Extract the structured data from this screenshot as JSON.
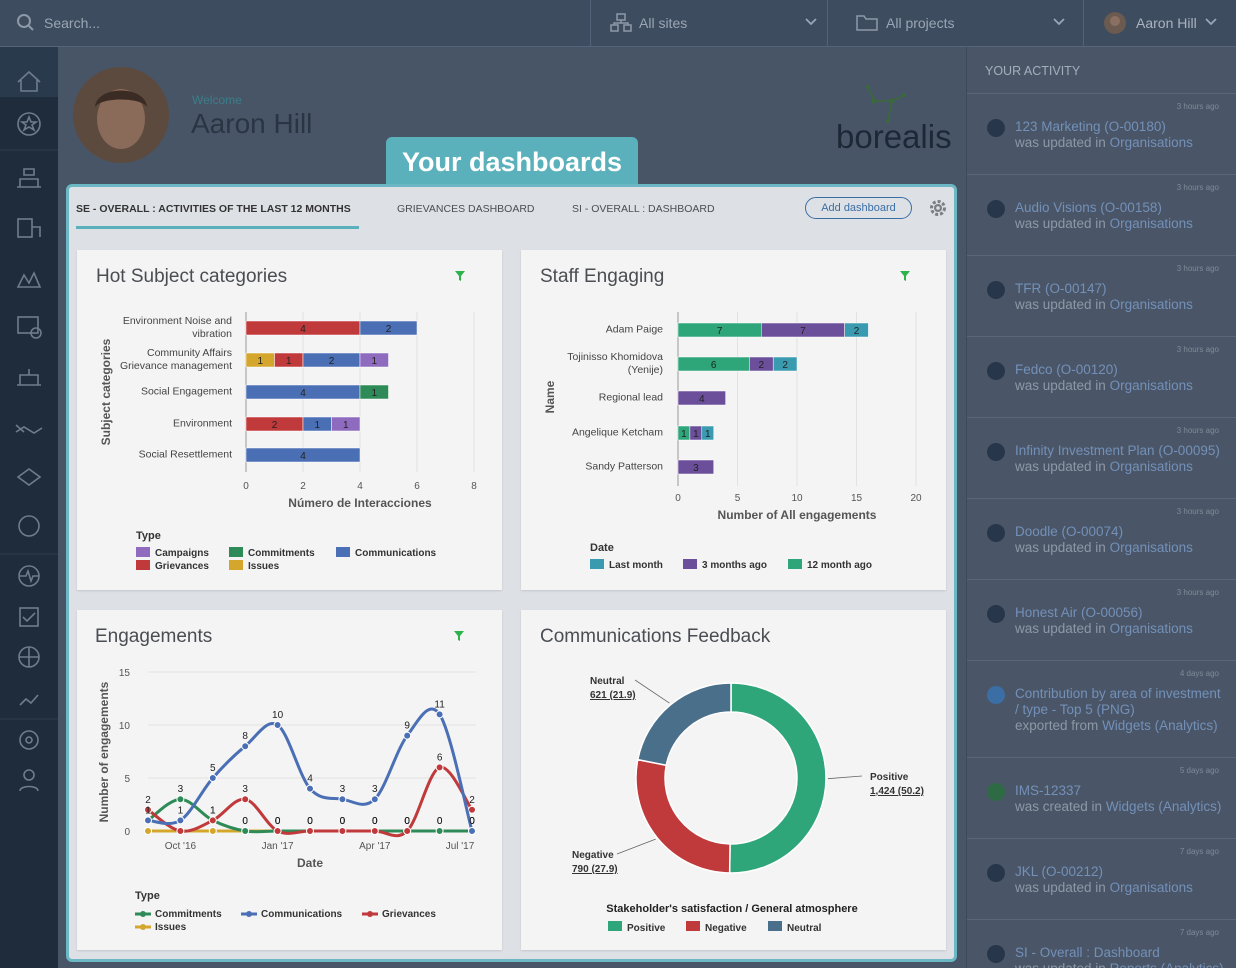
{
  "header": {
    "search": "Search...",
    "sites": "All sites",
    "projects": "All projects",
    "user": "Aaron Hill"
  },
  "welcome": {
    "greeting": "Welcome",
    "name": "Aaron Hill"
  },
  "logo": "borealis",
  "banner": "Your dashboards",
  "tabs": {
    "items": [
      "SE - OVERALL : ACTIVITIES OF THE LAST 12 MONTHS",
      "GRIEVANCES DASHBOARD",
      "SI - OVERALL : DASHBOARD"
    ],
    "add_button": "Add dashboard"
  },
  "activity": {
    "title": "YOUR ACTIVITY",
    "items": [
      {
        "time": "3 hours ago",
        "title": "123 Marketing (O-00180)",
        "action": "was updated in",
        "target": "Organisations"
      },
      {
        "time": "3 hours ago",
        "title": "Audio Visions (O-00158)",
        "action": "was updated in",
        "target": "Organisations"
      },
      {
        "time": "3 hours ago",
        "title": "TFR (O-00147)",
        "action": "was updated in",
        "target": "Organisations"
      },
      {
        "time": "3 hours ago",
        "title": "Fedco (O-00120)",
        "action": "was updated in",
        "target": "Organisations"
      },
      {
        "time": "3 hours ago",
        "title": "Infinity Investment Plan (O-00095)",
        "action": "was updated in",
        "target": "Organisations"
      },
      {
        "time": "3 hours ago",
        "title": "Doodle (O-00074)",
        "action": "was updated in",
        "target": "Organisations"
      },
      {
        "time": "3 hours ago",
        "title": "Honest Air (O-00056)",
        "action": "was updated in",
        "target": "Organisations"
      },
      {
        "time": "4 days ago",
        "title": "Contribution by area of investment / type - Top 5 (PNG)",
        "action": "exported from",
        "target": "Widgets (Analytics)"
      },
      {
        "time": "5 days ago",
        "title": "IMS-12337",
        "action": "was created in",
        "target": "Widgets (Analytics)"
      },
      {
        "time": "7 days ago",
        "title": "JKL (O-00212)",
        "action": "was updated in",
        "target": "Organisations"
      },
      {
        "time": "7 days ago",
        "title": "SI - Overall : Dashboard",
        "action": "was updated in",
        "target": "Reports (Analytics)"
      }
    ]
  },
  "chart_data": [
    {
      "type": "bar",
      "orientation": "horizontal",
      "stacked": true,
      "title": "Hot Subject categories",
      "x_label": "Número de Interacciones",
      "y_label": "Subject categories",
      "legend_title": "Type",
      "categories": [
        "Environment Noise and vibration",
        "Community Affairs Grievance management",
        "Social Engagement",
        "Environment",
        "Social Resettlement"
      ],
      "series": [
        {
          "name": "Issues",
          "color": "#d4a72c",
          "values": [
            null,
            1,
            null,
            null,
            null
          ]
        },
        {
          "name": "Grievances",
          "color": "#c0393b",
          "values": [
            4,
            1,
            null,
            2,
            null
          ]
        },
        {
          "name": "Communications",
          "color": "#4a6fb5",
          "values": [
            2,
            2,
            4,
            1,
            4
          ]
        },
        {
          "name": "Commitments",
          "color": "#2e8b57",
          "values": [
            null,
            null,
            1,
            null,
            null
          ]
        },
        {
          "name": "Campaigns",
          "color": "#8e6bbf",
          "values": [
            null,
            1,
            null,
            1,
            null
          ]
        }
      ],
      "xlim": [
        0,
        8
      ],
      "xticks": [
        0,
        2,
        4,
        6,
        8
      ],
      "grid": true
    },
    {
      "type": "bar",
      "orientation": "horizontal",
      "stacked": true,
      "title": "Staff Engaging",
      "x_label": "Number of All engagements",
      "y_label": "Name",
      "legend_title": "Date",
      "categories": [
        "Adam Paige",
        "Tojinisso Khomidova (Yenije)",
        "Regional lead",
        "Angelique Ketcham",
        "Sandy Patterson"
      ],
      "series": [
        {
          "name": "Last month",
          "color": "#3a9bb0",
          "values": [
            2,
            2,
            null,
            1,
            null
          ]
        },
        {
          "name": "3 months ago",
          "color": "#6b4f9a",
          "values": [
            7,
            2,
            4,
            1,
            3
          ]
        },
        {
          "name": "12 month ago",
          "color": "#2fa57a",
          "values": [
            7,
            6,
            null,
            1,
            null
          ]
        }
      ],
      "xlim": [
        0,
        20
      ],
      "xticks": [
        0,
        5,
        10,
        15,
        20
      ],
      "grid": true
    },
    {
      "type": "line",
      "title": "Engagements",
      "x_label": "Date",
      "y_label": "Number of engagements",
      "legend_title": "Type",
      "categories": [
        null,
        "Oct '16",
        null,
        null,
        "Jan '17",
        null,
        null,
        "Apr '17",
        null,
        null,
        "Jul '17"
      ],
      "series": [
        {
          "name": "Commitments",
          "color": "#2e8b57",
          "values": [
            1,
            3,
            1,
            0,
            0,
            0,
            0,
            0,
            0,
            0,
            0
          ]
        },
        {
          "name": "Communications",
          "color": "#4a6fb5",
          "values": [
            1,
            1,
            5,
            8,
            10,
            4,
            3,
            3,
            9,
            11,
            0
          ]
        },
        {
          "name": "Grievances",
          "color": "#c0393b",
          "values": [
            2,
            0,
            1,
            3,
            0,
            0,
            0,
            0,
            0,
            6,
            2
          ]
        },
        {
          "name": "Issues",
          "color": "#d4a72c",
          "values": [
            0,
            0,
            0,
            0,
            0,
            0,
            0,
            0,
            0,
            0,
            0
          ]
        }
      ],
      "ylim": [
        0,
        15
      ],
      "yticks": [
        0,
        5,
        10,
        15
      ],
      "grid": true
    },
    {
      "type": "pie",
      "donut": true,
      "title": "Communications Feedback",
      "subtitle": "Stakeholder's satisfaction / General atmosphere",
      "categories": [
        "Positive",
        "Negative",
        "Neutral"
      ],
      "values": [
        1424,
        790,
        621
      ],
      "value_labels": [
        "1,424 (50.2)",
        "790 (27.9)",
        "621 (21.9)"
      ],
      "colors": [
        "#2fa57a",
        "#c0393b",
        "#4a6f8a"
      ]
    }
  ]
}
